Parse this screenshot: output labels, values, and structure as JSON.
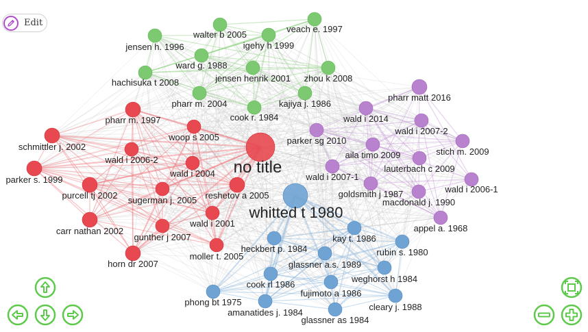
{
  "toolbar": {
    "edit_label": "Edit",
    "edit_icon": "pencil-icon"
  },
  "navigation": {
    "up_icon": "arrow-up-icon",
    "left_icon": "arrow-left-icon",
    "down_icon": "arrow-down-icon",
    "right_icon": "arrow-right-icon",
    "fit_icon": "fit-to-screen-icon",
    "zoom_out_icon": "zoom-out-icon",
    "zoom_in_icon": "zoom-in-icon",
    "accent_color": "#5cc94a"
  },
  "clusters": [
    {
      "id": "green",
      "color": "#7cc971",
      "stroke": "#5fb553",
      "edge": "#8fd083"
    },
    {
      "id": "purple",
      "color": "#b982cf",
      "stroke": "#9c62b5",
      "edge": "#c79ad9"
    },
    {
      "id": "red",
      "color": "#e84850",
      "stroke": "#cf2f37",
      "edge": "#ef7a80"
    },
    {
      "id": "blue",
      "color": "#6fa3d4",
      "stroke": "#4f87bd",
      "edge": "#8cb6de"
    }
  ],
  "nodes": [
    {
      "label": "veach e. 1997",
      "cluster": "green"
    },
    {
      "label": "walter b 2005",
      "cluster": "green"
    },
    {
      "label": "jensen h. 1996",
      "cluster": "green"
    },
    {
      "label": "igehy h 1999",
      "cluster": "green"
    },
    {
      "label": "ward g. 1988",
      "cluster": "green"
    },
    {
      "label": "hachisuka t 2008",
      "cluster": "green"
    },
    {
      "label": "jensen henrik 2001",
      "cluster": "green"
    },
    {
      "label": "zhou k 2008",
      "cluster": "green"
    },
    {
      "label": "pharr m. 2004",
      "cluster": "green"
    },
    {
      "label": "kajiya j. 1986",
      "cluster": "green"
    },
    {
      "label": "cook r. 1984",
      "cluster": "green"
    },
    {
      "label": "pharr matt 2016",
      "cluster": "purple"
    },
    {
      "label": "wald i 2014",
      "cluster": "purple"
    },
    {
      "label": "wald i 2007-2",
      "cluster": "purple"
    },
    {
      "label": "parker sg 2010",
      "cluster": "purple"
    },
    {
      "label": "aila timo 2009",
      "cluster": "purple"
    },
    {
      "label": "stich m. 2009",
      "cluster": "purple"
    },
    {
      "label": "lauterbach c 2009",
      "cluster": "purple"
    },
    {
      "label": "wald i 2007-1",
      "cluster": "purple"
    },
    {
      "label": "wald i 2006-1",
      "cluster": "purple"
    },
    {
      "label": "goldsmith j 1987",
      "cluster": "purple"
    },
    {
      "label": "macdonald j. 1990",
      "cluster": "purple"
    },
    {
      "label": "appel a. 1968",
      "cluster": "purple"
    },
    {
      "label": "pharr m. 1997",
      "cluster": "red"
    },
    {
      "label": "schmittler j. 2002",
      "cluster": "red"
    },
    {
      "label": "woop s 2005",
      "cluster": "red"
    },
    {
      "label": "no title",
      "cluster": "red"
    },
    {
      "label": "wald i 2006-2",
      "cluster": "red"
    },
    {
      "label": "parker s. 1999",
      "cluster": "red"
    },
    {
      "label": "wald i 2004",
      "cluster": "red"
    },
    {
      "label": "purcell tj 2002",
      "cluster": "red"
    },
    {
      "label": "sugerman j. 2005",
      "cluster": "red"
    },
    {
      "label": "reshetov a 2005",
      "cluster": "red"
    },
    {
      "label": "wald i 2001",
      "cluster": "red"
    },
    {
      "label": "carr nathan 2002",
      "cluster": "red"
    },
    {
      "label": "gunther j 2007",
      "cluster": "red"
    },
    {
      "label": "moller t. 2005",
      "cluster": "red"
    },
    {
      "label": "horn dr 2007",
      "cluster": "red"
    },
    {
      "label": "whitted t 1980",
      "cluster": "blue"
    },
    {
      "label": "kay t. 1986",
      "cluster": "blue"
    },
    {
      "label": "heckbert p. 1984",
      "cluster": "blue"
    },
    {
      "label": "rubin s. 1980",
      "cluster": "blue"
    },
    {
      "label": "glassner a.s. 1989",
      "cluster": "blue"
    },
    {
      "label": "weghorst h 1984",
      "cluster": "blue"
    },
    {
      "label": "cook rl 1986",
      "cluster": "blue"
    },
    {
      "label": "fujimoto a 1986",
      "cluster": "blue"
    },
    {
      "label": "cleary j. 1988",
      "cluster": "blue"
    },
    {
      "label": "phong bt 1975",
      "cluster": "blue"
    },
    {
      "label": "amanatides j. 1984",
      "cluster": "blue"
    },
    {
      "label": "glassner as 1984",
      "cluster": "blue"
    }
  ]
}
